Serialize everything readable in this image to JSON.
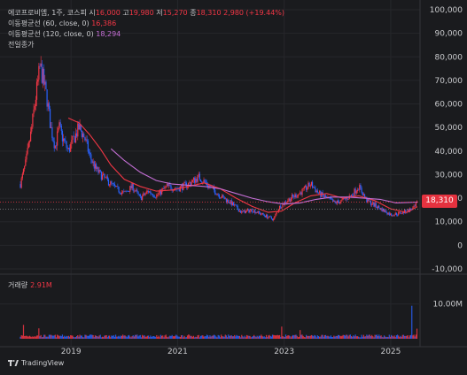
{
  "legend": {
    "symbol": "에코프로비엠, 1주, 코스피",
    "open_label": "시",
    "open": "16,000",
    "high_label": "고",
    "high": "19,980",
    "low_label": "저",
    "low": "15,270",
    "close_label": "종",
    "close": "18,310",
    "change": "2,980 (+19.44%)",
    "ma60_label": "이동평균선 (60, close, 0)",
    "ma60_value": "16,386",
    "ma120_label": "이동평균선 (120, close, 0)",
    "ma120_value": "18,294",
    "prev_close_label": "전일종가"
  },
  "volume": {
    "label": "거래량",
    "value": "2.91M"
  },
  "last_price_tag": "18,310",
  "branding": "TradingView",
  "colors": {
    "background": "#1a1b1e",
    "up": "#f23645",
    "down": "#2962ff",
    "ma60": "#f23645",
    "ma120": "#c56fd6"
  },
  "chart_data": {
    "type": "candlestick",
    "price_axis": {
      "ticks": [
        100000,
        90000,
        80000,
        70000,
        60000,
        50000,
        40000,
        30000,
        20000,
        10000,
        0,
        -10000
      ],
      "tick_labels": [
        "100,000",
        "90,000",
        "80,000",
        "70,000",
        "60,000",
        "50,000",
        "40,000",
        "30,000",
        "20,000",
        "10,000",
        "0",
        "-10,000"
      ],
      "range": [
        -10000,
        100000
      ]
    },
    "volume_axis": {
      "tick_labels": [
        "10.00M"
      ],
      "ticks": [
        10000000
      ]
    },
    "time_axis": {
      "tick_labels": [
        "2019",
        "2021",
        "2023",
        "2025"
      ],
      "ticks": [
        2019,
        2021,
        2023,
        2025
      ],
      "range": [
        2017.8,
        2025.55
      ]
    },
    "price_trend": [
      [
        2018.05,
        26000
      ],
      [
        2018.15,
        35000
      ],
      [
        2018.25,
        48000
      ],
      [
        2018.35,
        65000
      ],
      [
        2018.42,
        76000
      ],
      [
        2018.48,
        70000
      ],
      [
        2018.55,
        62000
      ],
      [
        2018.62,
        50000
      ],
      [
        2018.7,
        42000
      ],
      [
        2018.78,
        50000
      ],
      [
        2018.85,
        45000
      ],
      [
        2018.95,
        40000
      ],
      [
        2019.05,
        45000
      ],
      [
        2019.15,
        50000
      ],
      [
        2019.25,
        46000
      ],
      [
        2019.35,
        38000
      ],
      [
        2019.45,
        33000
      ],
      [
        2019.55,
        30000
      ],
      [
        2019.7,
        27000
      ],
      [
        2019.85,
        24000
      ],
      [
        2020.0,
        22000
      ],
      [
        2020.15,
        25000
      ],
      [
        2020.3,
        20000
      ],
      [
        2020.45,
        23000
      ],
      [
        2020.6,
        21000
      ],
      [
        2020.8,
        25000
      ],
      [
        2021.0,
        24000
      ],
      [
        2021.2,
        26000
      ],
      [
        2021.4,
        29000
      ],
      [
        2021.6,
        25000
      ],
      [
        2021.8,
        21000
      ],
      [
        2022.0,
        18000
      ],
      [
        2022.2,
        14000
      ],
      [
        2022.4,
        15000
      ],
      [
        2022.6,
        13000
      ],
      [
        2022.8,
        11000
      ],
      [
        2022.9,
        16000
      ],
      [
        2023.05,
        19000
      ],
      [
        2023.2,
        21000
      ],
      [
        2023.35,
        23000
      ],
      [
        2023.5,
        26000
      ],
      [
        2023.65,
        22000
      ],
      [
        2023.8,
        20000
      ],
      [
        2023.95,
        18000
      ],
      [
        2024.1,
        19000
      ],
      [
        2024.25,
        21000
      ],
      [
        2024.4,
        25000
      ],
      [
        2024.55,
        19000
      ],
      [
        2024.7,
        17000
      ],
      [
        2024.85,
        15000
      ],
      [
        2025.0,
        13000
      ],
      [
        2025.15,
        13500
      ],
      [
        2025.3,
        14500
      ],
      [
        2025.45,
        16000
      ],
      [
        2025.5,
        18310
      ]
    ],
    "series": [
      {
        "name": "이동평균선 (60, close, 0)",
        "points": [
          [
            2018.95,
            54000
          ],
          [
            2019.15,
            52000
          ],
          [
            2019.35,
            47000
          ],
          [
            2019.55,
            41000
          ],
          [
            2019.75,
            34000
          ],
          [
            2020.0,
            28000
          ],
          [
            2020.3,
            25000
          ],
          [
            2020.6,
            23000
          ],
          [
            2020.9,
            23500
          ],
          [
            2021.2,
            25000
          ],
          [
            2021.5,
            26500
          ],
          [
            2021.8,
            24000
          ],
          [
            2022.1,
            20000
          ],
          [
            2022.4,
            16500
          ],
          [
            2022.7,
            14000
          ],
          [
            2022.95,
            14500
          ],
          [
            2023.2,
            18000
          ],
          [
            2023.5,
            21000
          ],
          [
            2023.8,
            22000
          ],
          [
            2024.1,
            20000
          ],
          [
            2024.4,
            21000
          ],
          [
            2024.7,
            19000
          ],
          [
            2025.0,
            15500
          ],
          [
            2025.3,
            14000
          ],
          [
            2025.5,
            16386
          ]
        ]
      },
      {
        "name": "이동평균선 (120, close, 0)",
        "points": [
          [
            2019.75,
            41000
          ],
          [
            2020.0,
            36000
          ],
          [
            2020.3,
            31000
          ],
          [
            2020.6,
            27500
          ],
          [
            2020.9,
            26000
          ],
          [
            2021.2,
            25500
          ],
          [
            2021.5,
            25000
          ],
          [
            2021.8,
            24000
          ],
          [
            2022.1,
            22000
          ],
          [
            2022.4,
            20000
          ],
          [
            2022.7,
            18500
          ],
          [
            2023.0,
            17500
          ],
          [
            2023.3,
            18000
          ],
          [
            2023.6,
            19500
          ],
          [
            2023.9,
            20500
          ],
          [
            2024.2,
            20500
          ],
          [
            2024.5,
            20000
          ],
          [
            2024.8,
            19500
          ],
          [
            2025.1,
            18000
          ],
          [
            2025.5,
            18294
          ]
        ]
      }
    ],
    "previous_close": 15330,
    "last_close": 18310,
    "volume_spikes_m": [
      [
        2018.1,
        4
      ],
      [
        2018.4,
        3
      ],
      [
        2021.95,
        1.2
      ],
      [
        2022.95,
        3.5
      ],
      [
        2023.3,
        2.5
      ],
      [
        2024.25,
        1.2
      ],
      [
        2025.4,
        9.5
      ],
      [
        2025.5,
        2.91
      ]
    ],
    "grid": true,
    "legend_position": "top-left"
  }
}
